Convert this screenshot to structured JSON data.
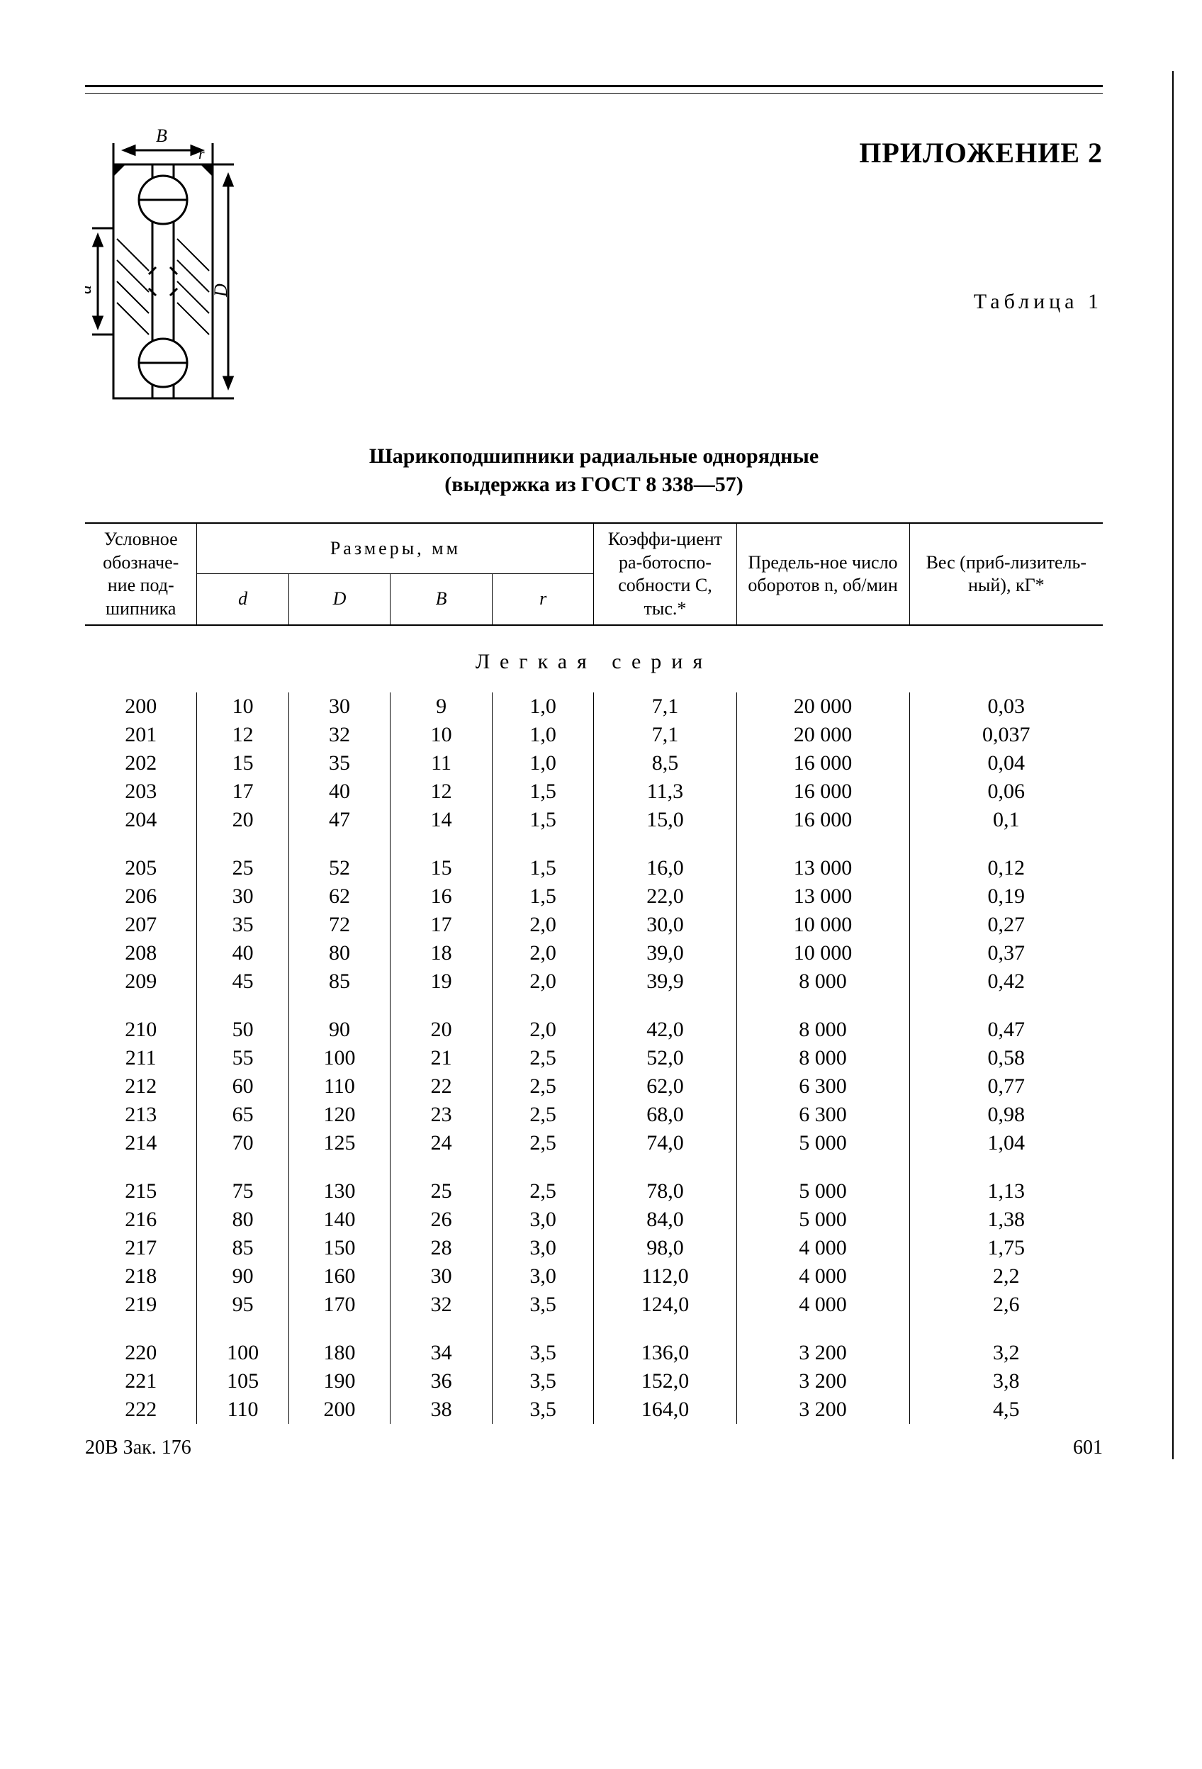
{
  "appendix_title": "ПРИЛОЖЕНИЕ 2",
  "table_label": "Таблица 1",
  "table_title": "Шарикоподшипники радиальные однорядные",
  "table_subtitle": "(выдержка из ГОСТ 8 338—57)",
  "series_title": "Легкая серия",
  "footer_left": "20В Зак. 176",
  "page_number": "601",
  "diagram_labels": {
    "B": "B",
    "d": "d",
    "D": "D",
    "r": "r"
  },
  "header": {
    "col_design": "Условное обозначе-ние под-шипника",
    "dims_label": "Размеры,  мм",
    "col_d": "d",
    "col_D": "D",
    "col_B": "B",
    "col_r": "r",
    "col_C": "Коэффи-циент ра-ботоспо-собности С, тыс.*",
    "col_n": "Предель-ное число оборотов n, об/мин",
    "col_w": "Вес (приб-лизитель-ный), кГ*"
  },
  "table": {
    "col_widths_pct": [
      11,
      9,
      10,
      10,
      10,
      14,
      17,
      19
    ],
    "groups": [
      [
        [
          "200",
          "10",
          "30",
          "9",
          "1,0",
          "7,1",
          "20 000",
          "0,03"
        ],
        [
          "201",
          "12",
          "32",
          "10",
          "1,0",
          "7,1",
          "20 000",
          "0,037"
        ],
        [
          "202",
          "15",
          "35",
          "11",
          "1,0",
          "8,5",
          "16 000",
          "0,04"
        ],
        [
          "203",
          "17",
          "40",
          "12",
          "1,5",
          "11,3",
          "16 000",
          "0,06"
        ],
        [
          "204",
          "20",
          "47",
          "14",
          "1,5",
          "15,0",
          "16 000",
          "0,1"
        ]
      ],
      [
        [
          "205",
          "25",
          "52",
          "15",
          "1,5",
          "16,0",
          "13 000",
          "0,12"
        ],
        [
          "206",
          "30",
          "62",
          "16",
          "1,5",
          "22,0",
          "13 000",
          "0,19"
        ],
        [
          "207",
          "35",
          "72",
          "17",
          "2,0",
          "30,0",
          "10 000",
          "0,27"
        ],
        [
          "208",
          "40",
          "80",
          "18",
          "2,0",
          "39,0",
          "10 000",
          "0,37"
        ],
        [
          "209",
          "45",
          "85",
          "19",
          "2,0",
          "39,9",
          "8 000",
          "0,42"
        ]
      ],
      [
        [
          "210",
          "50",
          "90",
          "20",
          "2,0",
          "42,0",
          "8 000",
          "0,47"
        ],
        [
          "211",
          "55",
          "100",
          "21",
          "2,5",
          "52,0",
          "8 000",
          "0,58"
        ],
        [
          "212",
          "60",
          "110",
          "22",
          "2,5",
          "62,0",
          "6 300",
          "0,77"
        ],
        [
          "213",
          "65",
          "120",
          "23",
          "2,5",
          "68,0",
          "6 300",
          "0,98"
        ],
        [
          "214",
          "70",
          "125",
          "24",
          "2,5",
          "74,0",
          "5 000",
          "1,04"
        ]
      ],
      [
        [
          "215",
          "75",
          "130",
          "25",
          "2,5",
          "78,0",
          "5 000",
          "1,13"
        ],
        [
          "216",
          "80",
          "140",
          "26",
          "3,0",
          "84,0",
          "5 000",
          "1,38"
        ],
        [
          "217",
          "85",
          "150",
          "28",
          "3,0",
          "98,0",
          "4 000",
          "1,75"
        ],
        [
          "218",
          "90",
          "160",
          "30",
          "3,0",
          "112,0",
          "4 000",
          "2,2"
        ],
        [
          "219",
          "95",
          "170",
          "32",
          "3,5",
          "124,0",
          "4 000",
          "2,6"
        ]
      ],
      [
        [
          "220",
          "100",
          "180",
          "34",
          "3,5",
          "136,0",
          "3 200",
          "3,2"
        ],
        [
          "221",
          "105",
          "190",
          "36",
          "3,5",
          "152,0",
          "3 200",
          "3,8"
        ],
        [
          "222",
          "110",
          "200",
          "38",
          "3,5",
          "164,0",
          "3 200",
          "4,5"
        ]
      ]
    ]
  }
}
